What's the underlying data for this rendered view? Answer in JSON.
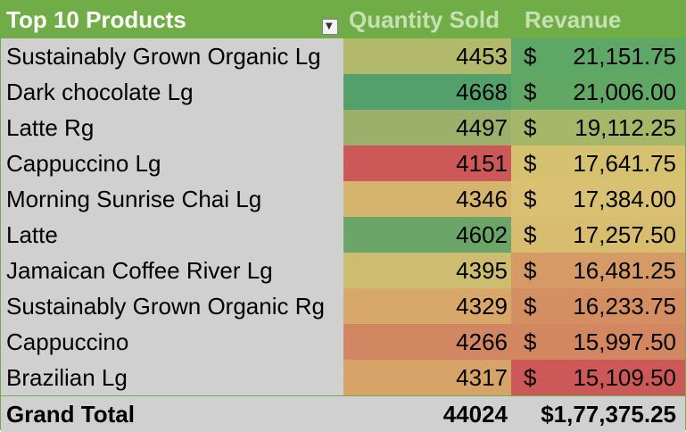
{
  "pivot": {
    "header": {
      "products_label": "Top 10 Products",
      "quantity_label": "Quantity Sold",
      "revenue_label": "Revanue"
    },
    "rows": [
      {
        "product": "Sustainably Grown Organic Lg",
        "quantity": "4453",
        "currency": "$",
        "revenue": "21,151.75",
        "qty_color": "#b3b96b",
        "rev_color": "#5ea766"
      },
      {
        "product": "Dark chocolate Lg",
        "quantity": "4668",
        "currency": "$",
        "revenue": "21,006.00",
        "qty_color": "#54a06a",
        "rev_color": "#62a865"
      },
      {
        "product": "Latte Rg",
        "quantity": "4497",
        "currency": "$",
        "revenue": "19,112.25",
        "qty_color": "#9caf6b",
        "rev_color": "#a6b76a"
      },
      {
        "product": "Cappuccino Lg",
        "quantity": "4151",
        "currency": "$",
        "revenue": "17,641.75",
        "qty_color": "#cd5858",
        "rev_color": "#d5c170"
      },
      {
        "product": "Morning Sunrise Chai Lg",
        "quantity": "4346",
        "currency": "$",
        "revenue": "17,384.00",
        "qty_color": "#d5b56e",
        "rev_color": "#d9c072"
      },
      {
        "product": "Latte",
        "quantity": "4602",
        "currency": "$",
        "revenue": "17,257.50",
        "qty_color": "#6ba668",
        "rev_color": "#d8bc70"
      },
      {
        "product": "Jamaican Coffee River Lg",
        "quantity": "4395",
        "currency": "$",
        "revenue": "16,481.25",
        "qty_color": "#cdbd70",
        "rev_color": "#d69a67"
      },
      {
        "product": "Sustainably Grown Organic Rg",
        "quantity": "4329",
        "currency": "$",
        "revenue": "16,233.75",
        "qty_color": "#d7a869",
        "rev_color": "#d38f62"
      },
      {
        "product": "Cappuccino",
        "quantity": "4266",
        "currency": "$",
        "revenue": "15,997.50",
        "qty_color": "#d08762",
        "rev_color": "#d28760"
      },
      {
        "product": "Brazilian Lg",
        "quantity": "4317",
        "currency": "$",
        "revenue": "15,109.50",
        "qty_color": "#d6a468",
        "rev_color": "#cd5858"
      }
    ],
    "total": {
      "label": "Grand Total",
      "quantity": "44024",
      "revenue": "$1,77,375.25"
    },
    "colors": {
      "header_bg": "#70ad47",
      "header_text": "#ffffff",
      "header_subtext": "#c6e0b4",
      "row_label_bg": "#d0d0d0"
    },
    "filter_icon": "filter-icon"
  }
}
